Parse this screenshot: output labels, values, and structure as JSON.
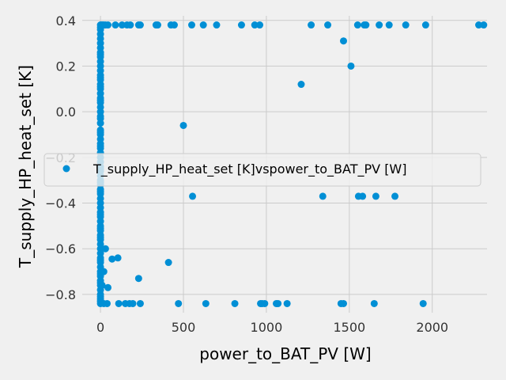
{
  "chart_data": {
    "type": "scatter",
    "title": "",
    "xlabel": "power_to_BAT_PV [W]",
    "ylabel": "T_supply_HP_heat_set [K]",
    "xlim": [
      -110,
      2330
    ],
    "ylim": [
      -0.88,
      0.42
    ],
    "xticks": [
      0,
      500,
      1000,
      1500,
      2000
    ],
    "yticks": [
      -0.8,
      -0.6,
      -0.4,
      -0.2,
      0.0,
      0.2,
      0.4
    ],
    "ytick_labels": [
      "−0.8",
      "−0.6",
      "−0.4",
      "−0.2",
      "0.0",
      "0.2",
      "0.4"
    ],
    "grid": true,
    "legend_position": "center-left",
    "marker_color": "#008fd5",
    "background_color": "#f0f0f0",
    "grid_color": "#cbcbcb",
    "series": [
      {
        "name": "T_supply_HP_heat_set [K]vspower_to_BAT_PV [W]",
        "x": [
          0,
          0,
          0,
          0,
          0,
          0,
          0,
          0,
          0,
          0,
          0,
          0,
          0,
          0,
          0,
          0,
          0,
          0,
          0,
          0,
          0,
          0,
          0,
          0,
          0,
          0,
          0,
          0,
          0,
          0,
          0,
          0,
          0,
          0,
          0,
          0,
          0,
          0,
          0,
          0,
          0,
          0,
          0,
          0,
          0,
          0,
          0,
          0,
          0,
          0,
          0,
          0,
          0,
          0,
          0,
          0,
          0,
          0,
          0,
          0,
          0,
          0,
          0,
          0,
          0,
          0,
          0,
          0,
          0,
          0,
          0,
          0,
          0,
          0,
          0,
          0,
          0,
          0,
          0,
          0,
          5,
          10,
          15,
          20,
          30,
          45,
          90,
          130,
          160,
          180,
          230,
          240,
          335,
          345,
          425,
          445,
          550,
          620,
          700,
          850,
          930,
          960,
          1270,
          1370,
          1550,
          1590,
          1600,
          1680,
          1740,
          1840,
          1960,
          2280,
          2310,
          20,
          40,
          110,
          150,
          175,
          195,
          240,
          470,
          635,
          810,
          965,
          975,
          990,
          1060,
          1070,
          1125,
          1450,
          1465,
          1650,
          1945,
          10,
          20,
          30,
          70,
          105,
          45,
          230,
          410,
          555,
          1340,
          1555,
          1580,
          1660,
          1775,
          500,
          1210,
          1465,
          1510
        ],
        "y": [
          0.38,
          0.37,
          0.36,
          0.32,
          0.3,
          0.28,
          0.26,
          0.24,
          0.22,
          0.2,
          0.18,
          0.16,
          0.14,
          0.12,
          0.1,
          0.08,
          0.06,
          0.04,
          0.02,
          0.0,
          -0.02,
          -0.05,
          -0.08,
          -0.1,
          -0.12,
          -0.14,
          -0.16,
          -0.18,
          -0.2,
          -0.22,
          -0.24,
          -0.26,
          -0.28,
          -0.3,
          -0.32,
          -0.34,
          -0.36,
          -0.38,
          -0.4,
          -0.42,
          -0.44,
          -0.46,
          -0.48,
          -0.5,
          -0.52,
          -0.54,
          -0.56,
          -0.58,
          -0.6,
          -0.62,
          -0.64,
          -0.66,
          -0.68,
          -0.7,
          -0.72,
          -0.74,
          -0.76,
          -0.78,
          -0.8,
          -0.82,
          -0.84,
          0.34,
          0.25,
          0.15,
          0.05,
          -0.03,
          -0.15,
          -0.25,
          -0.35,
          -0.45,
          -0.55,
          -0.65,
          -0.75,
          -0.83,
          0.11,
          -0.09,
          -0.31,
          -0.51,
          -0.71,
          -0.81,
          0.38,
          0.38,
          0.38,
          0.38,
          0.38,
          0.38,
          0.38,
          0.38,
          0.38,
          0.38,
          0.38,
          0.38,
          0.38,
          0.38,
          0.38,
          0.38,
          0.38,
          0.38,
          0.38,
          0.38,
          0.38,
          0.38,
          0.38,
          0.38,
          0.38,
          0.38,
          0.38,
          0.38,
          0.38,
          0.38,
          0.38,
          0.38,
          0.38,
          -0.84,
          -0.84,
          -0.84,
          -0.84,
          -0.84,
          -0.84,
          -0.84,
          -0.84,
          -0.84,
          -0.84,
          -0.84,
          -0.84,
          -0.84,
          -0.84,
          -0.84,
          -0.84,
          -0.84,
          -0.84,
          -0.84,
          -0.84,
          -0.76,
          -0.7,
          -0.6,
          -0.645,
          -0.64,
          -0.77,
          -0.73,
          -0.66,
          -0.37,
          -0.37,
          -0.37,
          -0.37,
          -0.37,
          -0.37,
          -0.06,
          0.12,
          0.31,
          0.2
        ]
      }
    ]
  }
}
